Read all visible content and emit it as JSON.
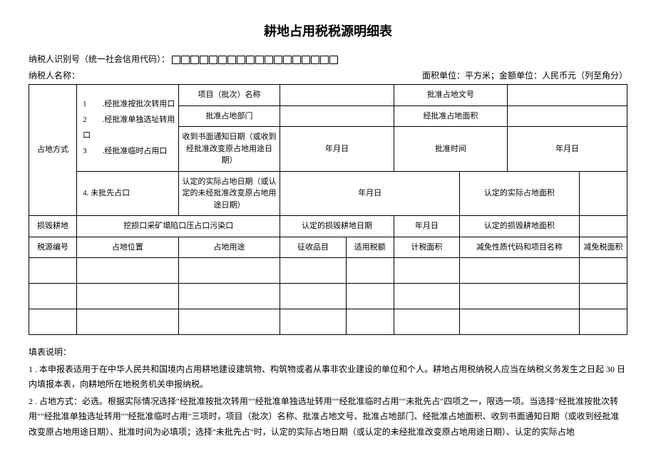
{
  "title": "耕地占用税税源明细表",
  "header": {
    "taxpayer_id_label": "纳税人识别号（统一社会信用代码）：",
    "taxpayer_name_label": "纳税人名称：",
    "unit_note": "面积单位：平方米；金额单位：人民币元（列至角分）"
  },
  "boxes_count": 18,
  "table": {
    "r1": {
      "landmode": "占地方式",
      "options_123": "1　　.经批准按批次转用口\n2　　.经批准单独选址转用口\n3　　.经批准临时占用口",
      "option_4": "4. 未批先占口",
      "proj_name": "项目（批次）名称",
      "approval_doc": "批准占地文号",
      "approval_dept": "批准占地部门",
      "approved_area": "经批准占地面积",
      "notice_date": "收到书面通知日期（或收到经批准改变原占地用途日期）",
      "ymd": "年月日",
      "approval_time": "批准时间",
      "actual_date": "认定的实际占地日期（或认定的未经批准改变原占地用途日期）",
      "actual_area": "认定的实际占地面积"
    },
    "r2": {
      "damage_label": "损毁耕地",
      "damage_opts": "挖损口采矿塌陷口压占口污染口",
      "damage_date": "认定的损毁耕地日期",
      "ymd": "年月日",
      "damage_area": "认定的损毁耕地面积"
    },
    "r3": {
      "src_no": "税源编号",
      "location": "占地位置",
      "usage": "占地用途",
      "levy_item": "征收品目",
      "rate": "适用税额",
      "calc_area": "计税面积",
      "reduce_code": "减免性质代码和项目名称",
      "reduce_area": "减免税面积"
    }
  },
  "notes": {
    "heading": "填表说明：",
    "n1": "1 . 本申报表适用于在中华人民共和国境内占用耕地建设建筑物、构筑物或者从事非农业建设的单位和个人。耕地占用税纳税人应当在纳税义务发生之日起 30 日内填报本表，向耕地所在地税务机关申报纳税。",
    "n2": "2 . 占地方式：必选。根据实际情况选择\"经批准按批次转用\"\"经批准单独选址转用\"\"经批准临时占用\"\"未批先占\"四项之一，限选一项。当选择\"经批准按批次转用\"\"经批准单独选址转用\"\"经批准临时占用\"三项时，项目（批次）名称、批准占地文号、批准占地部门、经批准占地面积、收到书面通知日期（或收到经批准改变原占地用途日期）、批准时间为必填项；选择\"未批先占\"时，认定的实际占地日期（或认定的未经批准改变原占地用途日期）、认定的实际占地"
  }
}
